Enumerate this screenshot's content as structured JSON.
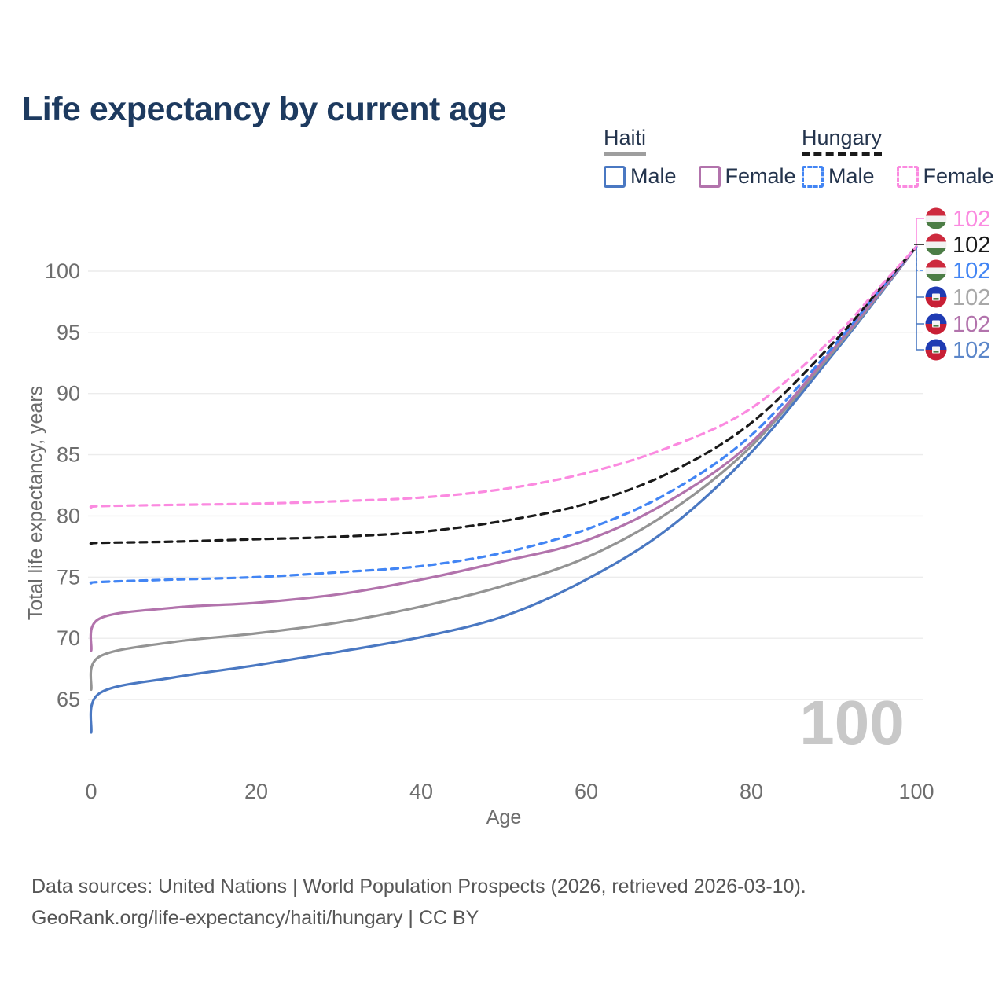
{
  "page": {
    "title": "Life expectancy by current age"
  },
  "legend": {
    "groups": [
      {
        "label": "Haiti",
        "line_style": "solid",
        "underline_color": "#9e9e9e",
        "items": [
          {
            "label": "Male",
            "color": "#4a78c2"
          },
          {
            "label": "Female",
            "color": "#b273ac"
          }
        ]
      },
      {
        "label": "Hungary",
        "line_style": "dashed",
        "underline_color": "#1a1a1a",
        "items": [
          {
            "label": "Male",
            "color": "#4285f4"
          },
          {
            "label": "Female",
            "color": "#fb8ae0"
          }
        ]
      }
    ]
  },
  "chart_data": {
    "type": "line",
    "xlabel": "Age",
    "ylabel": "Total life expectancy, years",
    "xlim": [
      0,
      100
    ],
    "ylim": [
      65,
      100
    ],
    "xticks": [
      0,
      20,
      40,
      60,
      80,
      100
    ],
    "yticks": [
      65,
      70,
      75,
      80,
      85,
      90,
      95,
      100
    ],
    "grid": "horizontal",
    "watermark": "100",
    "ages": [
      0,
      1,
      10,
      20,
      30,
      40,
      50,
      60,
      70,
      80,
      90,
      95,
      100
    ],
    "series": [
      {
        "id": "haiti_male",
        "name": "Haiti Male",
        "country": "Haiti",
        "sex": "Male",
        "color": "#4a78c2",
        "dash": false,
        "flag": "ht",
        "end_label": "102",
        "label_color": "#5b86c9",
        "values": [
          62.3,
          65.5,
          66.8,
          67.8,
          68.9,
          70.1,
          71.8,
          74.8,
          79.0,
          85.2,
          93.3,
          97.6,
          102
        ]
      },
      {
        "id": "haiti_all",
        "name": "Haiti Both sexes",
        "country": "Haiti",
        "sex": "Both",
        "color": "#949494",
        "dash": false,
        "flag": "ht",
        "end_label": "102",
        "label_color": "#a8a8a8",
        "values": [
          65.8,
          68.5,
          69.7,
          70.4,
          71.3,
          72.6,
          74.3,
          76.6,
          80.3,
          85.7,
          93.5,
          97.7,
          102
        ]
      },
      {
        "id": "haiti_female",
        "name": "Haiti Female",
        "country": "Haiti",
        "sex": "Female",
        "color": "#b273ac",
        "dash": false,
        "flag": "ht",
        "end_label": "102",
        "label_color": "#b273ac",
        "values": [
          69.0,
          71.6,
          72.5,
          72.9,
          73.6,
          74.8,
          76.3,
          78.0,
          81.2,
          86.0,
          93.7,
          97.8,
          102
        ]
      },
      {
        "id": "hungary_male",
        "name": "Hungary Male",
        "country": "Hungary",
        "sex": "Male",
        "color": "#4285f4",
        "dash": true,
        "flag": "hu",
        "end_label": "102",
        "label_color": "#4285f4",
        "values": [
          74.5,
          74.6,
          74.8,
          75.0,
          75.4,
          75.9,
          77.0,
          78.9,
          81.9,
          86.6,
          93.9,
          98.0,
          102
        ]
      },
      {
        "id": "hungary_all",
        "name": "Hungary Both sexes",
        "country": "Hungary",
        "sex": "Both",
        "color": "#1a1a1a",
        "dash": true,
        "flag": "hu",
        "end_label": "102",
        "label_color": "#1a1a1a",
        "values": [
          77.7,
          77.8,
          77.9,
          78.1,
          78.3,
          78.7,
          79.6,
          81.0,
          83.5,
          87.6,
          94.2,
          98.1,
          102
        ]
      },
      {
        "id": "hungary_female",
        "name": "Hungary Female",
        "country": "Hungary",
        "sex": "Female",
        "color": "#fb8ae0",
        "dash": true,
        "flag": "hu",
        "end_label": "102",
        "label_color": "#fb8ae0",
        "values": [
          80.7,
          80.8,
          80.9,
          81.0,
          81.2,
          81.5,
          82.2,
          83.5,
          85.6,
          88.8,
          94.6,
          98.3,
          102
        ]
      }
    ],
    "flag_colors": {
      "hu": {
        "red": "#cd2a3e",
        "white": "#f2f2f2",
        "green": "#4c7d46"
      },
      "ht": {
        "blue": "#1f3bb3",
        "red": "#c81f35",
        "panel": "#f5f5f5",
        "grass": "#4c7d46"
      }
    }
  },
  "footer": {
    "line1": "Data sources: United Nations | World Population Prospects (2026, retrieved 2026-03-10).",
    "line2": "GeoRank.org/life-expectancy/haiti/hungary | CC BY"
  }
}
